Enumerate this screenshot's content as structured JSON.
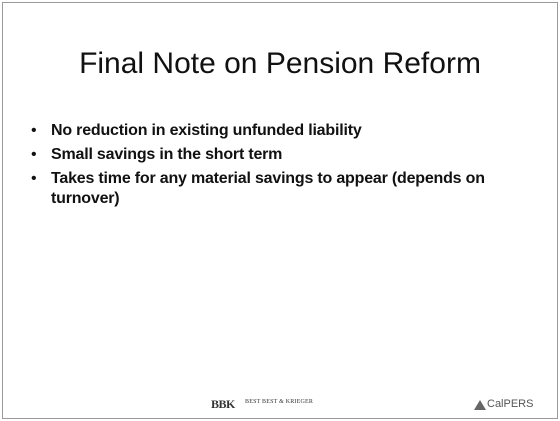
{
  "header": {
    "title": "Final Note on Pension Reform"
  },
  "bullets": [
    "No reduction in existing unfunded liability",
    "Small savings in the short term",
    "Takes time for any material savings to appear (depends on turnover)"
  ],
  "footer": {
    "left_logo": "BBK",
    "left_name": "BEST BEST & KRIEGER",
    "right_logo": "CalPERS"
  }
}
